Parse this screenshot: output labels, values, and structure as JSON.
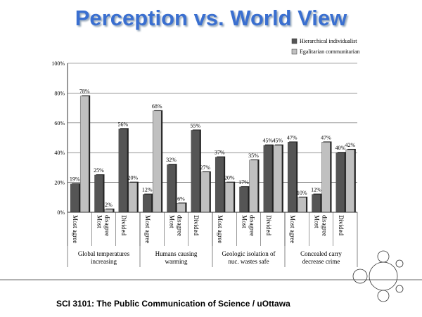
{
  "chart_data": {
    "type": "bar",
    "title": "Perception vs. World View",
    "categories": [
      "Most agree",
      "Most disagree",
      "Divided",
      "Most agree",
      "Most disagree",
      "Divided",
      "Most agree",
      "Most disagree",
      "Divided",
      "Most agree",
      "Most disagree",
      "Divided"
    ],
    "groups": [
      "Global temperatures increasing",
      "Humans causing warming",
      "Geologic isolation of nuc. wastes safe",
      "Concealed carry decrease crime"
    ],
    "series": [
      {
        "name": "Hierarchical individualist",
        "color": "#555555",
        "values": [
          19,
          25,
          56,
          12,
          32,
          55,
          37,
          17,
          45,
          47,
          12,
          40
        ],
        "value_labels": [
          "19%",
          "25%",
          "56%",
          "12%",
          "32%",
          "55%",
          "37%",
          "17%",
          "45%",
          "47%",
          "12%",
          "40%"
        ]
      },
      {
        "name": "Egalitarian communitarian",
        "color": "#c0c0c0",
        "values": [
          78,
          2,
          20,
          68,
          6,
          27,
          20,
          35,
          45,
          10,
          47,
          42
        ],
        "value_labels": [
          "78%",
          "2%",
          "20%",
          "68%",
          "6%",
          "27%",
          "20%",
          "35%",
          "45%",
          "10%",
          "47%",
          "42%"
        ]
      }
    ],
    "ylim": [
      0,
      100
    ],
    "yticks": [
      {
        "value": 0,
        "label": "0%"
      },
      {
        "value": 20,
        "label": "20%"
      },
      {
        "value": 40,
        "label": "40%"
      },
      {
        "value": 60,
        "label": "60%"
      },
      {
        "value": 80,
        "label": "80%"
      },
      {
        "value": 100,
        "label": "100%"
      }
    ],
    "grid": true
  },
  "footer": "SCI 3101: The Public Communication of Science / uOttawa"
}
